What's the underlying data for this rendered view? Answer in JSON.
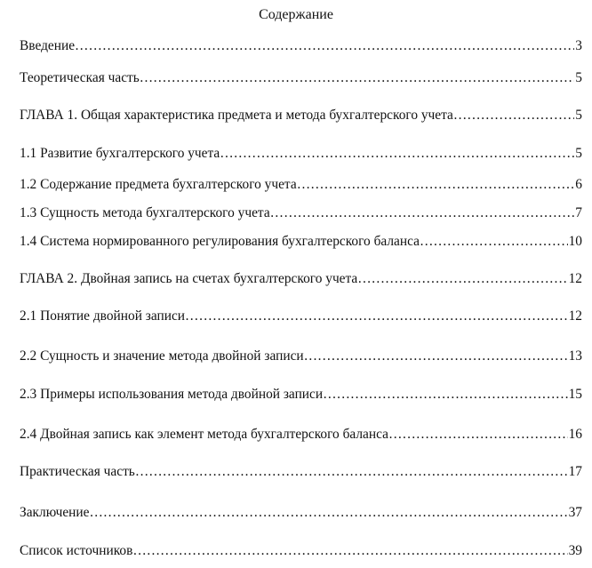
{
  "title": "Содержание",
  "entries": [
    {
      "label": "Введение",
      "page": "3"
    },
    {
      "label": "Теоретическая часть",
      "page": "5"
    },
    {
      "label": "ГЛАВА 1. Общая характеристика предмета и метода бухгалтерского учета",
      "page": "5"
    },
    {
      "label": "1.1 Развитие бухгалтерского учета",
      "page": "5"
    },
    {
      "label": "1.2 Содержание предмета бухгалтерского учета",
      "page": "6"
    },
    {
      "label": "1.3 Сущность метода бухгалтерского учета",
      "page": "7"
    },
    {
      "label": "1.4 Система нормированного регулирования бухгалтерского баланса",
      "page": "10"
    },
    {
      "label": "ГЛАВА 2. Двойная запись на счетах бухгалтерского учета",
      "page": "12"
    },
    {
      "label": "2.1 Понятие двойной записи",
      "page": "12"
    },
    {
      "label": "2.2 Сущность и значение метода двойной записи",
      "page": "13"
    },
    {
      "label": "2.3 Примеры использования метода двойной записи",
      "page": "15"
    },
    {
      "label": "2.4 Двойная запись как элемент метода бухгалтерского баланса",
      "page": "16"
    },
    {
      "label": "Практическая часть",
      "page": "17"
    },
    {
      "label": "Заключение",
      "page": "37"
    },
    {
      "label": "Список источников ",
      "page": "39"
    }
  ]
}
